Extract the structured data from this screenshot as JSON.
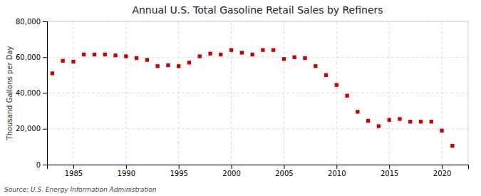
{
  "chart_data": {
    "type": "scatter",
    "title": "Annual U.S. Total Gasoline Retail Sales by Refiners",
    "ylabel": "Thousand Gallons per Day",
    "annotations": [
      "Source: U.S. Energy Information Administration"
    ],
    "x": [
      1983,
      1984,
      1985,
      1986,
      1987,
      1988,
      1989,
      1990,
      1991,
      1992,
      1993,
      1994,
      1995,
      1996,
      1997,
      1998,
      1999,
      2000,
      2001,
      2002,
      2003,
      2004,
      2005,
      2006,
      2007,
      2008,
      2009,
      2010,
      2011,
      2012,
      2013,
      2014,
      2015,
      2016,
      2017,
      2018,
      2019,
      2020,
      2021
    ],
    "values": [
      51000,
      58000,
      57500,
      61500,
      61500,
      61500,
      61000,
      60500,
      59500,
      58500,
      55000,
      55500,
      55000,
      57000,
      60500,
      62000,
      61500,
      64000,
      62500,
      61500,
      64000,
      64000,
      59000,
      60000,
      59500,
      55000,
      50000,
      44500,
      38500,
      29500,
      24500,
      21500,
      25000,
      25500,
      24000,
      24000,
      24000,
      19000,
      10500
    ],
    "color": "#cc0000",
    "marker": "square",
    "xlim": [
      1982.5,
      2022.5
    ],
    "xticks": [
      1985,
      1990,
      1995,
      2000,
      2005,
      2010,
      2015,
      2020
    ],
    "ylim": [
      0,
      80000
    ],
    "yticks": [
      0,
      {
        "value": 20000,
        "label": "20,000"
      },
      {
        "value": 40000,
        "label": "40,000"
      },
      {
        "value": 60000,
        "label": "60,000"
      },
      {
        "value": 80000,
        "label": "80,000"
      }
    ],
    "grid": true
  }
}
